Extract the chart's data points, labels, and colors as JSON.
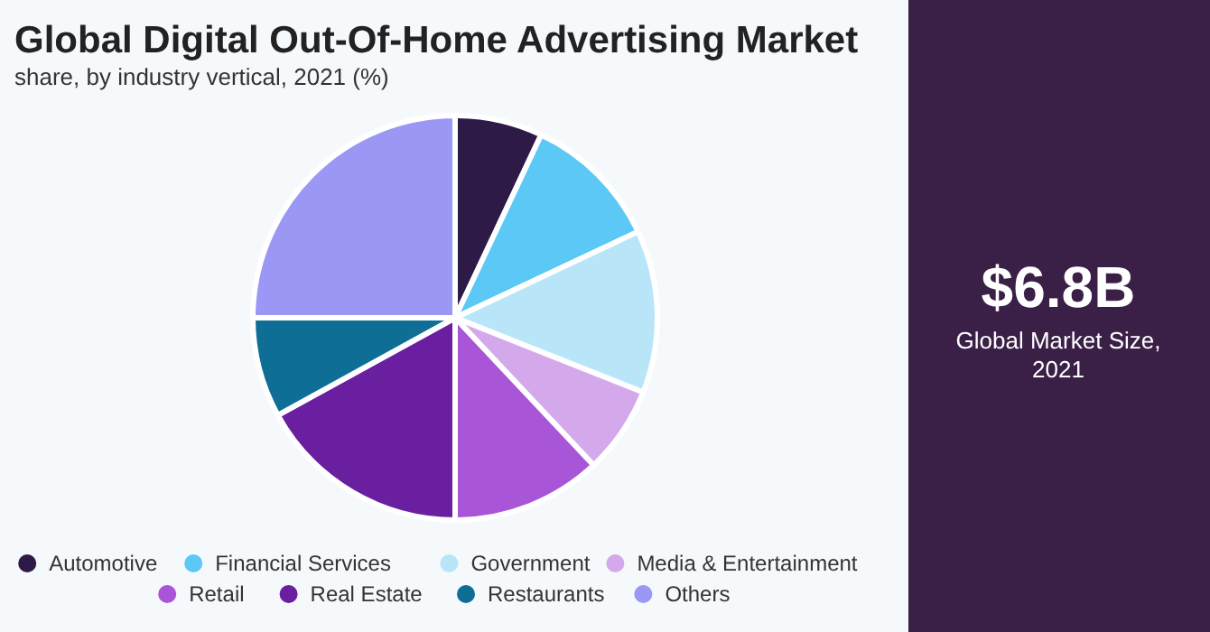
{
  "chart_data": {
    "type": "pie",
    "title": "Global Digital Out-Of-Home Advertising Market",
    "subtitle": "share, by industry vertical, 2021 (%)",
    "categories": [
      "Automotive",
      "Financial Services",
      "Government",
      "Media & Entertainment",
      "Retail",
      "Real Estate",
      "Restaurants",
      "Others"
    ],
    "values": [
      7,
      11,
      13,
      7,
      12,
      17,
      8,
      25
    ],
    "colors": [
      "#2e1a47",
      "#5bc8f5",
      "#b8e6f8",
      "#d4a9ec",
      "#a855d8",
      "#6a1fa0",
      "#0e6e96",
      "#9b97f5"
    ],
    "legend": "bottom",
    "annotations": [
      "$6.8B",
      "Global Market Size, 2021"
    ]
  }
}
